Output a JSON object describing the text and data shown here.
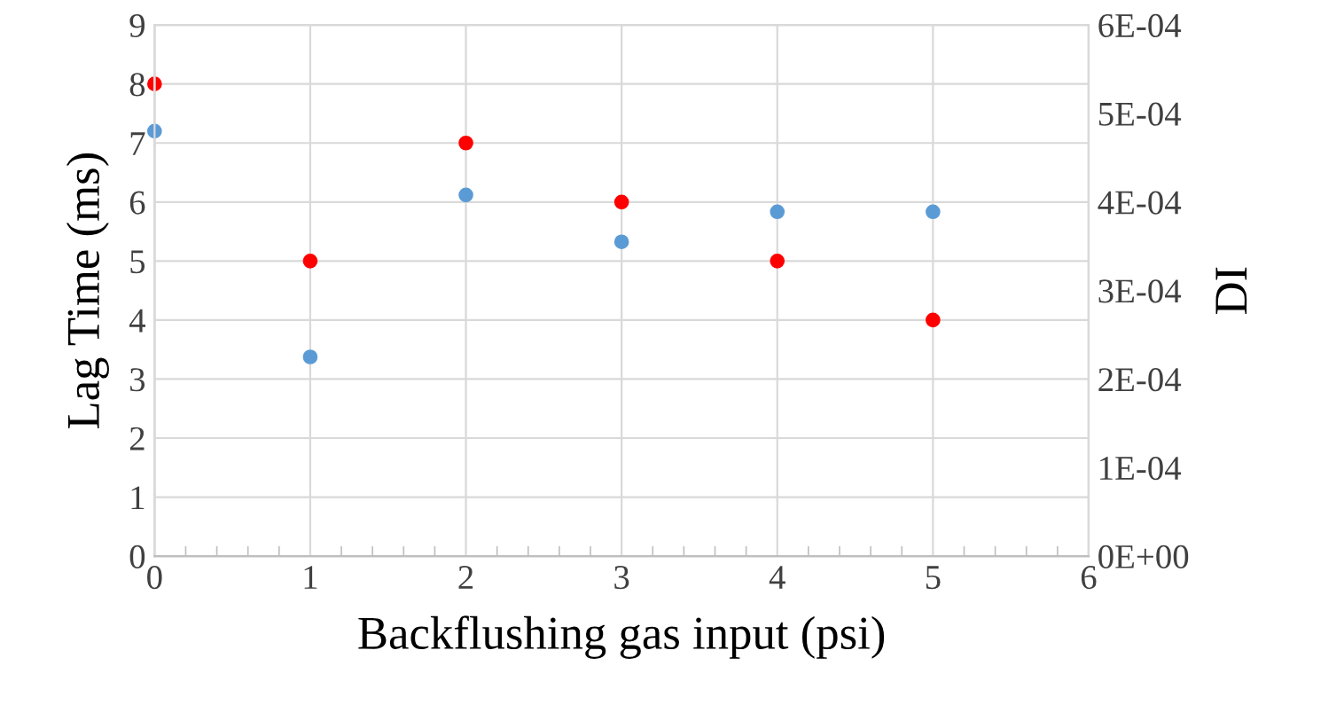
{
  "chart_data": {
    "type": "scatter",
    "xlabel": "Backflushing gas input (psi)",
    "ylabel": "Lag Time (ms)",
    "y2label": "DI",
    "series": [
      {
        "color": "#ff0000",
        "x": [
          0,
          1,
          2,
          3,
          4,
          5
        ],
        "values": [
          8,
          5,
          7,
          6,
          5,
          4
        ]
      },
      {
        "color": "#5b9bd5",
        "axis": "y2",
        "x": [
          0,
          1,
          2,
          3,
          4,
          5
        ],
        "values": [
          0.00048,
          0.000225,
          0.000408,
          0.000355,
          0.000389,
          0.000389
        ]
      }
    ],
    "xlim": [
      0,
      6
    ],
    "xticks": [
      0,
      1,
      2,
      3,
      4,
      5,
      6
    ],
    "ylim": [
      0,
      9
    ],
    "yticks": [
      0,
      1,
      2,
      3,
      4,
      5,
      6,
      7,
      8,
      9
    ],
    "y2lim": [
      0,
      0.0006
    ],
    "y2ticks": [
      {
        "value": 0,
        "label": "0E+00"
      },
      {
        "value": 0.0001,
        "label": "1E-04"
      },
      {
        "value": 0.0002,
        "label": "2E-04"
      },
      {
        "value": 0.0003,
        "label": "3E-04"
      },
      {
        "value": 0.0004,
        "label": "4E-04"
      },
      {
        "value": 0.0005,
        "label": "5E-04"
      },
      {
        "value": 0.0006,
        "label": "6E-04"
      }
    ],
    "grid": true,
    "marker": "circle",
    "legend": false
  }
}
